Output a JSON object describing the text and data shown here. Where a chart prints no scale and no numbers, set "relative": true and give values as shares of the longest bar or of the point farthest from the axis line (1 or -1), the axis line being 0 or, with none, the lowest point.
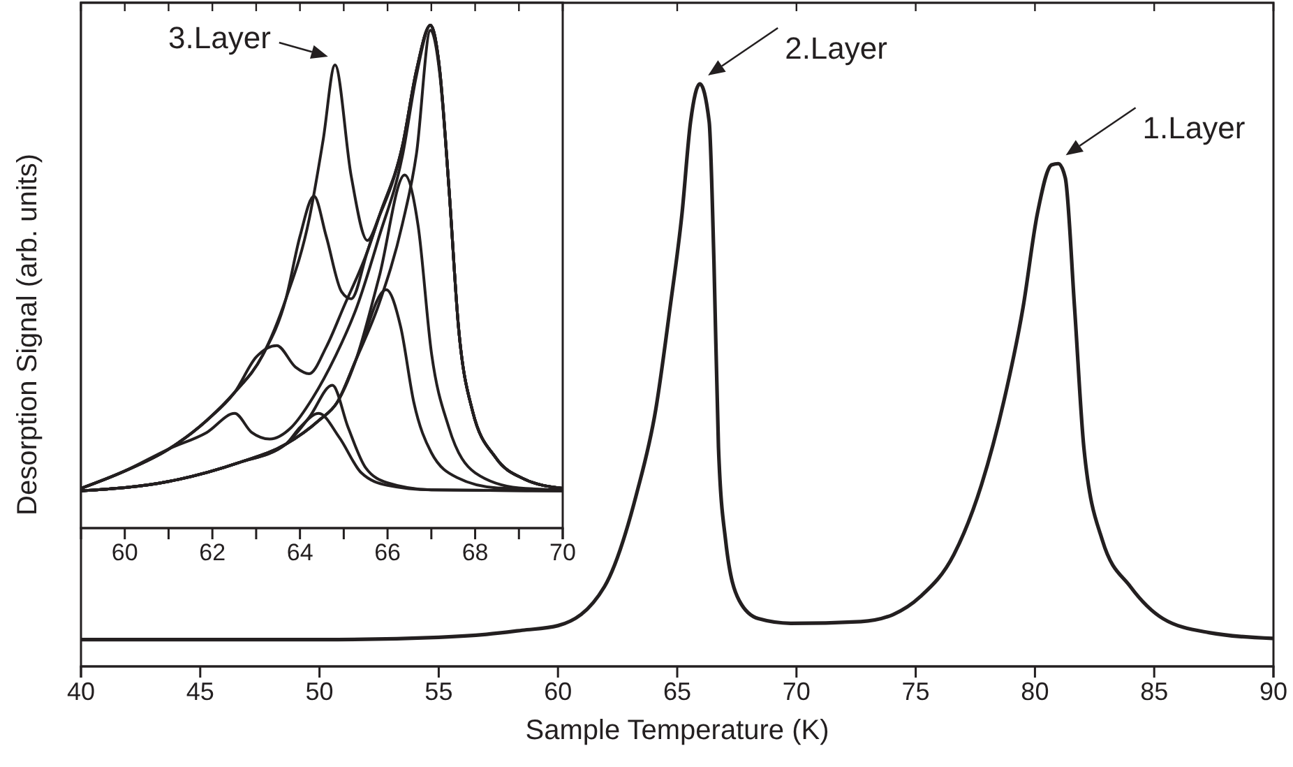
{
  "chart_data": [
    {
      "type": "line",
      "relative": true,
      "xlabel": "Sample Temperature (K)",
      "ylabel": "Desorption Signal (arb. units)",
      "xlim": [
        40,
        90
      ],
      "xticks": [
        40,
        45,
        50,
        55,
        60,
        65,
        70,
        75,
        80,
        85,
        90
      ],
      "line_style": "solid",
      "marker": "none",
      "annotations": [
        {
          "text": "2.Layer",
          "x": 66,
          "y": 1
        },
        {
          "text": "1.Layer",
          "x": 81,
          "y": 0.863
        }
      ],
      "series": [
        {
          "color": "#231f20",
          "x": [
            40,
            50,
            55,
            57,
            58.5,
            60,
            61.95,
            63.3,
            64.1,
            64.7,
            65.2,
            65.56,
            65.95,
            66.34,
            66.54,
            66.73,
            67.03,
            67.6,
            68.4,
            69.76,
            72.7,
            74.05,
            75.2,
            76.6,
            77.76,
            78.7,
            79.5,
            80.1,
            80.7,
            80.98,
            81.27,
            81.66,
            82.05,
            82.83,
            84,
            85.37,
            87.3,
            89.96
          ],
          "values": [
            0.046,
            0.046,
            0.05,
            0.055,
            0.062,
            0.07,
            0.137,
            0.297,
            0.441,
            0.616,
            0.777,
            0.935,
            1,
            0.935,
            0.695,
            0.376,
            0.216,
            0.113,
            0.082,
            0.074,
            0.077,
            0.089,
            0.12,
            0.192,
            0.312,
            0.456,
            0.616,
            0.777,
            0.861,
            0.863,
            0.839,
            0.616,
            0.376,
            0.216,
            0.137,
            0.082,
            0.058,
            0.048
          ]
        }
      ]
    },
    {
      "type": "line",
      "relative": true,
      "xlim": [
        59,
        70
      ],
      "xticks": [
        60,
        {
          "value": 61,
          "label": null
        },
        62,
        {
          "value": 63,
          "label": null
        },
        64,
        {
          "value": 65,
          "label": null
        },
        66,
        {
          "value": 67,
          "label": null
        },
        68,
        {
          "value": 69,
          "label": null
        },
        70
      ],
      "line_style": "solid",
      "marker": "none",
      "annotations": [
        {
          "text": "3.Layer",
          "x": 64.8,
          "y": 0.921
        }
      ],
      "series": [
        {
          "color": "#231f20",
          "x": [
            59,
            59.96,
            61.02,
            61.87,
            62.51,
            63.15,
            63.68,
            64.21,
            64.53,
            64.8,
            65.17,
            65.54,
            65.81,
            66.34,
            66.66,
            66.98,
            67.19,
            67.4,
            67.62,
            67.94,
            68.47,
            69.11,
            70
          ],
          "values": [
            0.079,
            0.112,
            0.158,
            0.214,
            0.27,
            0.344,
            0.456,
            0.614,
            0.772,
            0.921,
            0.7,
            0.572,
            0.62,
            0.76,
            0.91,
            1,
            0.912,
            0.679,
            0.4,
            0.233,
            0.14,
            0.098,
            0.079
          ]
        },
        {
          "color": "#231f20",
          "x": [
            59,
            59.96,
            61.02,
            61.87,
            62.51,
            63.15,
            63.68,
            64,
            64.32,
            64.6,
            64.95,
            65.17,
            65.54,
            65.81,
            66.34,
            66.66,
            66.98,
            67.19,
            67.4,
            67.62,
            67.94,
            68.47,
            69.11,
            70
          ],
          "values": [
            0.079,
            0.112,
            0.158,
            0.214,
            0.27,
            0.344,
            0.456,
            0.58,
            0.66,
            0.58,
            0.47,
            0.456,
            0.55,
            0.62,
            0.76,
            0.91,
            1,
            0.912,
            0.679,
            0.4,
            0.233,
            0.14,
            0.098,
            0.079
          ]
        },
        {
          "color": "#231f20",
          "x": [
            59,
            59.96,
            61.02,
            61.87,
            62.51,
            63,
            63.47,
            63.9,
            64.21,
            64.6,
            65,
            65.54,
            65.81,
            66.34,
            66.66,
            66.98,
            67.19,
            67.4,
            67.62,
            67.94,
            68.47,
            69.11,
            70
          ],
          "values": [
            0.079,
            0.112,
            0.158,
            0.214,
            0.27,
            0.34,
            0.363,
            0.32,
            0.307,
            0.36,
            0.44,
            0.55,
            0.62,
            0.76,
            0.91,
            1,
            0.912,
            0.679,
            0.4,
            0.233,
            0.14,
            0.098,
            0.079
          ]
        },
        {
          "color": "#231f20",
          "x": [
            59,
            59.96,
            61.02,
            61.87,
            62.51,
            62.9,
            63.31,
            63.8,
            64.3,
            64.8,
            65.3,
            65.81,
            66.34,
            66.66,
            66.98,
            67.19,
            67.4,
            67.62,
            67.94,
            68.47,
            69.11,
            70
          ],
          "values": [
            0.079,
            0.112,
            0.158,
            0.19,
            0.228,
            0.19,
            0.177,
            0.2,
            0.26,
            0.34,
            0.44,
            0.58,
            0.74,
            0.9,
            1,
            0.912,
            0.679,
            0.4,
            0.233,
            0.14,
            0.098,
            0.079
          ]
        },
        {
          "color": "#231f20",
          "x": [
            59,
            61.02,
            62.6,
            63.68,
            64.43,
            64.85,
            65.28,
            65.81,
            66.34,
            66.66,
            66.98,
            67.19,
            67.4,
            67.62,
            67.94,
            68.47,
            69.11,
            70
          ],
          "values": [
            0.074,
            0.093,
            0.13,
            0.167,
            0.214,
            0.25,
            0.335,
            0.447,
            0.605,
            0.744,
            0.99,
            0.905,
            0.679,
            0.4,
            0.233,
            0.14,
            0.098,
            0.079
          ]
        },
        {
          "color": "#231f20",
          "x": [
            59,
            61.02,
            62.6,
            63.68,
            64.43,
            64.85,
            65.28,
            65.81,
            66.39,
            66.7,
            67,
            67.4,
            68,
            69,
            70
          ],
          "values": [
            0.074,
            0.093,
            0.13,
            0.167,
            0.214,
            0.25,
            0.335,
            0.5,
            0.702,
            0.6,
            0.35,
            0.2,
            0.11,
            0.08,
            0.076
          ]
        },
        {
          "color": "#231f20",
          "x": [
            59,
            61.02,
            62.6,
            63.68,
            64.43,
            64.85,
            65.28,
            65.97,
            66.3,
            66.6,
            67,
            67.6,
            68.5,
            70
          ],
          "values": [
            0.074,
            0.093,
            0.13,
            0.167,
            0.214,
            0.25,
            0.335,
            0.474,
            0.4,
            0.25,
            0.15,
            0.1,
            0.08,
            0.076
          ]
        },
        {
          "color": "#231f20",
          "x": [
            59,
            61.02,
            62.6,
            63.68,
            64.21,
            64.74,
            65.1,
            65.5,
            66,
            67,
            70
          ],
          "values": [
            0.074,
            0.093,
            0.13,
            0.167,
            0.22,
            0.284,
            0.2,
            0.12,
            0.09,
            0.076,
            0.074
          ]
        },
        {
          "color": "#231f20",
          "x": [
            59,
            61.02,
            62.6,
            63.68,
            64,
            64.43,
            64.9,
            65.4,
            66,
            67,
            70
          ],
          "values": [
            0.074,
            0.093,
            0.13,
            0.167,
            0.2,
            0.228,
            0.18,
            0.11,
            0.085,
            0.076,
            0.074
          ]
        }
      ]
    }
  ]
}
